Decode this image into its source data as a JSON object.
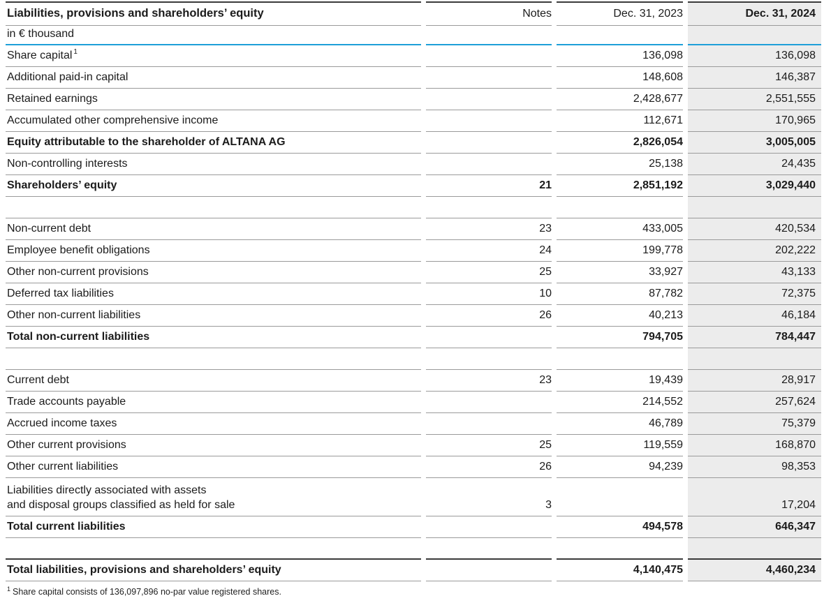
{
  "table": {
    "title": "Liabilities, provisions and shareholders’ equity",
    "unit": "in € thousand",
    "columns": {
      "notes": "Notes",
      "y2023": "Dec. 31, 2023",
      "y2024": "Dec. 31, 2024"
    },
    "rows": [
      {
        "label": "Share capital",
        "sup": "1",
        "note": "",
        "v2023": "136,098",
        "v2024": "136,098",
        "style": "normal"
      },
      {
        "label": "Additional paid-in capital",
        "note": "",
        "v2023": "148,608",
        "v2024": "146,387",
        "style": "normal"
      },
      {
        "label": "Retained earnings",
        "note": "",
        "v2023": "2,428,677",
        "v2024": "2,551,555",
        "style": "normal"
      },
      {
        "label": "Accumulated other comprehensive income",
        "note": "",
        "v2023": "112,671",
        "v2024": "170,965",
        "style": "normal"
      },
      {
        "label": "Equity attributable to the shareholder of ALTANA AG",
        "note": "",
        "v2023": "2,826,054",
        "v2024": "3,005,005",
        "style": "bold"
      },
      {
        "label": "Non-controlling interests",
        "note": "",
        "v2023": "25,138",
        "v2024": "24,435",
        "style": "normal"
      },
      {
        "label": "Shareholders’ equity",
        "note": "21",
        "v2023": "2,851,192",
        "v2024": "3,029,440",
        "style": "bold"
      },
      {
        "style": "spacer"
      },
      {
        "label": "Non-current debt",
        "note": "23",
        "v2023": "433,005",
        "v2024": "420,534",
        "style": "normal"
      },
      {
        "label": "Employee benefit obligations",
        "note": "24",
        "v2023": "199,778",
        "v2024": "202,222",
        "style": "normal"
      },
      {
        "label": "Other non-current provisions",
        "note": "25",
        "v2023": "33,927",
        "v2024": "43,133",
        "style": "normal"
      },
      {
        "label": "Deferred tax liabilities",
        "note": "10",
        "v2023": "87,782",
        "v2024": "72,375",
        "style": "normal"
      },
      {
        "label": "Other non-current liabilities",
        "note": "26",
        "v2023": "40,213",
        "v2024": "46,184",
        "style": "normal"
      },
      {
        "label": "Total non-current liabilities",
        "note": "",
        "v2023": "794,705",
        "v2024": "784,447",
        "style": "bold"
      },
      {
        "style": "spacer"
      },
      {
        "label": "Current debt",
        "note": "23",
        "v2023": "19,439",
        "v2024": "28,917",
        "style": "normal"
      },
      {
        "label": "Trade accounts payable",
        "note": "",
        "v2023": "214,552",
        "v2024": "257,624",
        "style": "normal"
      },
      {
        "label": "Accrued income taxes",
        "note": "",
        "v2023": "46,789",
        "v2024": "75,379",
        "style": "normal"
      },
      {
        "label": "Other current provisions",
        "note": "25",
        "v2023": "119,559",
        "v2024": "168,870",
        "style": "normal"
      },
      {
        "label": "Other current liabilities",
        "note": "26",
        "v2023": "94,239",
        "v2024": "98,353",
        "style": "normal"
      },
      {
        "label": "Liabilities directly associated with assets",
        "label2": "and disposal groups classified as held for sale",
        "note": "3",
        "v2023": "",
        "v2024": "17,204",
        "style": "normal"
      },
      {
        "label": "Total current liabilities",
        "note": "",
        "v2023": "494,578",
        "v2024": "646,347",
        "style": "bold"
      },
      {
        "style": "spacer",
        "dark_rule_below": true
      },
      {
        "label": "Total liabilities, provisions and shareholders’ equity",
        "note": "",
        "v2023": "4,140,475",
        "v2024": "4,460,234",
        "style": "bold"
      }
    ]
  },
  "footnote": {
    "sup": "1",
    "text": "Share capital consists of 136,097,896 no-par value registered shares."
  },
  "colors": {
    "accent_blue": "#1e9fd8",
    "highlight_column_bg": "#ececec",
    "row_rule_gray": "#9a9a9a",
    "dark_rule": "#3a3a3a"
  }
}
